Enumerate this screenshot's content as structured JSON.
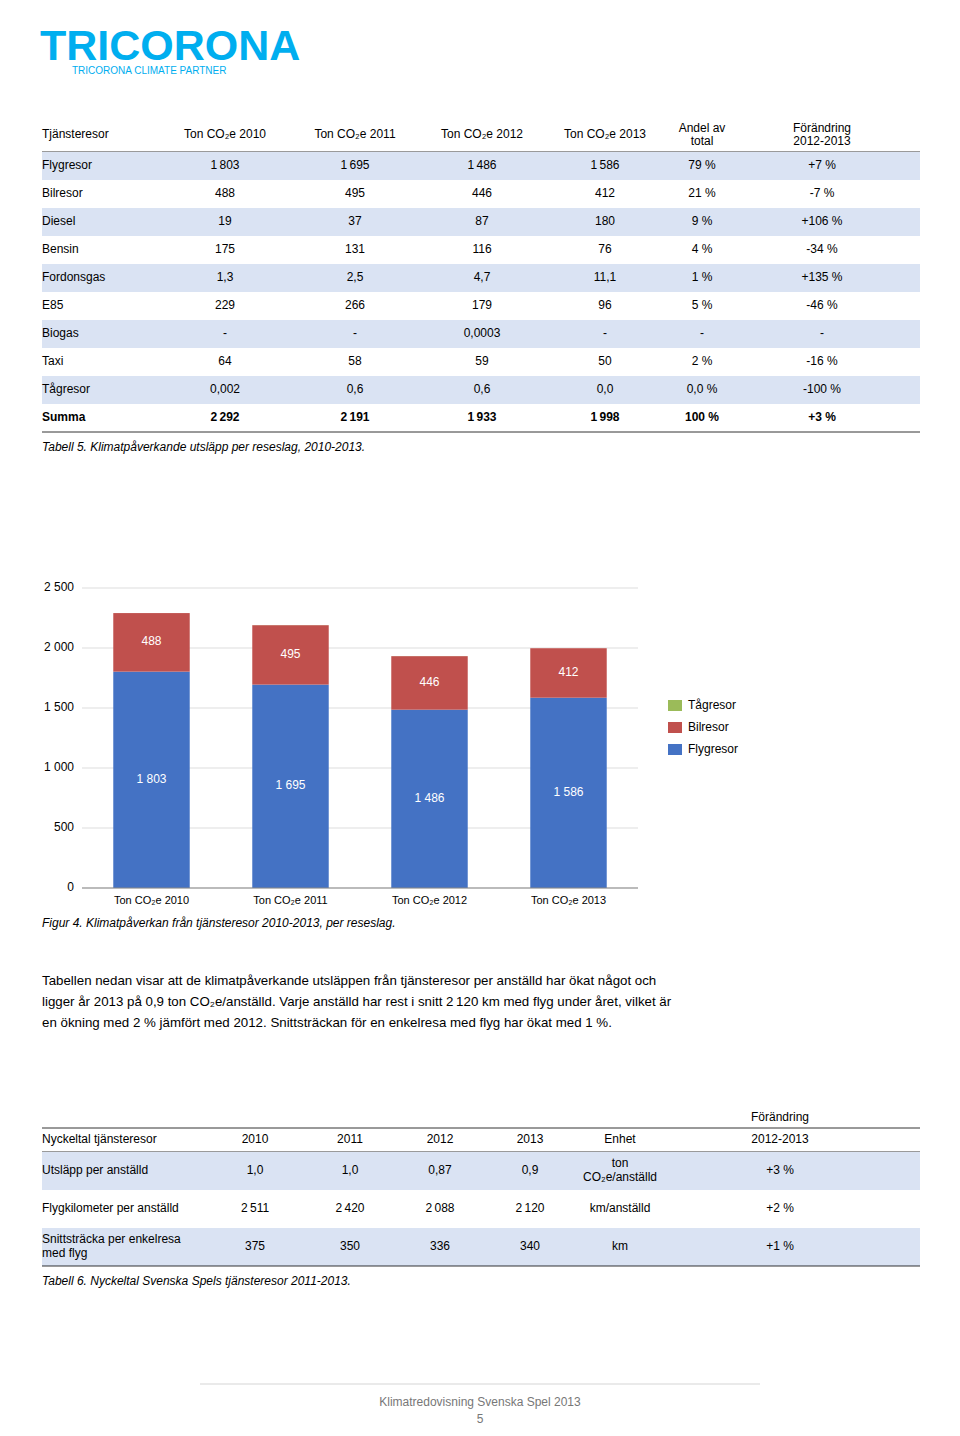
{
  "chart_data": {
    "type": "bar",
    "stacked": true,
    "title": "Figur 4. Klimatpåverkan från tjänsteresor 2010-2013, per reseslag.",
    "categories": [
      "Ton CO₂e 2010",
      "Ton CO₂e 2011",
      "Ton CO₂e 2012",
      "Ton CO₂e 2013"
    ],
    "series": [
      {
        "name": "Flygresor",
        "color": "#4472C4",
        "values": [
          1803,
          1695,
          1486,
          1586
        ],
        "value_labels": [
          "1 803",
          "1 695",
          "1 486",
          "1 586"
        ],
        "data_labels": true
      },
      {
        "name": "Bilresor",
        "color": "#C0504D",
        "values": [
          488,
          495,
          446,
          412
        ],
        "data_labels": true
      },
      {
        "name": "Tågresor",
        "color": "#9BBB59",
        "values": [
          0.002,
          0.6,
          0.6,
          0.0
        ],
        "data_labels": false
      }
    ],
    "ylim": [
      0,
      2500
    ],
    "yticks": [
      0,
      500,
      {
        "value": 1000,
        "label": "1 000"
      },
      {
        "value": 1500,
        "label": "1 500"
      },
      {
        "value": 2000,
        "label": "2 000"
      },
      {
        "value": 2500,
        "label": "2 500"
      }
    ],
    "grid": true,
    "legend": "right"
  },
  "logo": {
    "text": "TRICORONA",
    "subtitle": "TRICORONA CLIMATE PARTNER",
    "color": "#00AEEF"
  },
  "table1": {
    "header": [
      "Tjänsteresor",
      "Ton CO₂e 2010",
      "Ton CO₂e 2011",
      "Ton CO₂e 2012",
      "Ton CO₂e 2013",
      "Andel av\ntotal",
      "Förändring\n2012-2013"
    ],
    "rows": [
      [
        "Flygresor",
        "1 803",
        "1 695",
        "1 486",
        "1 586",
        "79 %",
        "+7 %"
      ],
      [
        "Bilresor",
        "488",
        "495",
        "446",
        "412",
        "21 %",
        "-7 %"
      ],
      [
        "    Diesel",
        "19",
        "37",
        "87",
        "180",
        "9 %",
        "+106 %"
      ],
      [
        "    Bensin",
        "175",
        "131",
        "116",
        "76",
        "4 %",
        "-34 %"
      ],
      [
        "    Fordonsgas",
        "1,3",
        "2,5",
        "4,7",
        "11,1",
        "1 %",
        "+135 %"
      ],
      [
        "    E85",
        "229",
        "266",
        "179",
        "96",
        "5 %",
        "-46 %"
      ],
      [
        "    Biogas",
        "-",
        "-",
        "0,0003",
        "-",
        "-",
        "-"
      ],
      [
        "    Taxi",
        "64",
        "58",
        "59",
        "50",
        "2 %",
        "-16 %"
      ],
      [
        "Tågresor",
        "0,002",
        "0,6",
        "0,6",
        "0,0",
        "0,0 %",
        "-100 %"
      ],
      [
        "Summa",
        "2 292",
        "2 191",
        "1 933",
        "1 998",
        "100 %",
        "+3 %"
      ]
    ],
    "row_color": "#DAE3F3",
    "caption": "Tabell 5. Klimatpåverkande utsläpp per reseslag, 2010-2013."
  },
  "body_text": "Tabellen nedan visar att de klimatpåverkande utsläppen från tjänsteresor per anställd har ökat något och\nligger år 2013 på 0,9 ton CO₂e/anställd. Varje anställd har rest i snitt 2 120 km med flyg under året, vilket är\nen ökning med 2 % jämfört med 2012. Snittsträckan för en enkelresa med flyg har ökat med 1 %.",
  "table2": {
    "header_top": "Förändring",
    "header": [
      "Nyckeltal tjänsteresor",
      "2010",
      "2011",
      "2012",
      "2013",
      "Enhet",
      "2012-2013"
    ],
    "rows": [
      [
        "Utsläpp per anställd",
        "1,0",
        "1,0",
        "0,87",
        "0,9",
        "ton\nCO₂e/anställd",
        "+3 %"
      ],
      [
        "Flygkilometer per anställd",
        "2 511",
        "2 420",
        "2 088",
        "2 120",
        "km/anställd",
        "+2 %"
      ],
      [
        "Snittsträcka per enkelresa\nmed flyg",
        "375",
        "350",
        "336",
        "340",
        "km",
        "+1 %"
      ]
    ],
    "row_color": "#DAE3F3",
    "caption": "Tabell 6. Nyckeltal Svenska Spels tjänsteresor 2011-2013."
  },
  "footer": {
    "text": "Klimatredovisning Svenska Spel 2013",
    "page": "5"
  }
}
